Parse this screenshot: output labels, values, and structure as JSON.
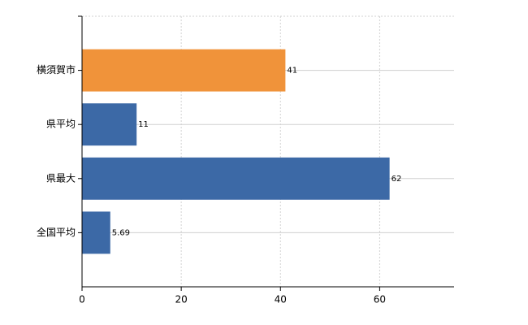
{
  "chart_data": {
    "type": "bar",
    "orientation": "horizontal",
    "categories": [
      "横須賀市",
      "県平均",
      "県最大",
      "全国平均"
    ],
    "values": [
      41,
      11,
      62,
      5.69
    ],
    "colors": [
      "#f0933a",
      "#3c69a6",
      "#3c69a6",
      "#3c69a6"
    ],
    "xlim": [
      0,
      75
    ],
    "xticks": [
      0,
      20,
      40,
      60
    ],
    "grid": true
  }
}
